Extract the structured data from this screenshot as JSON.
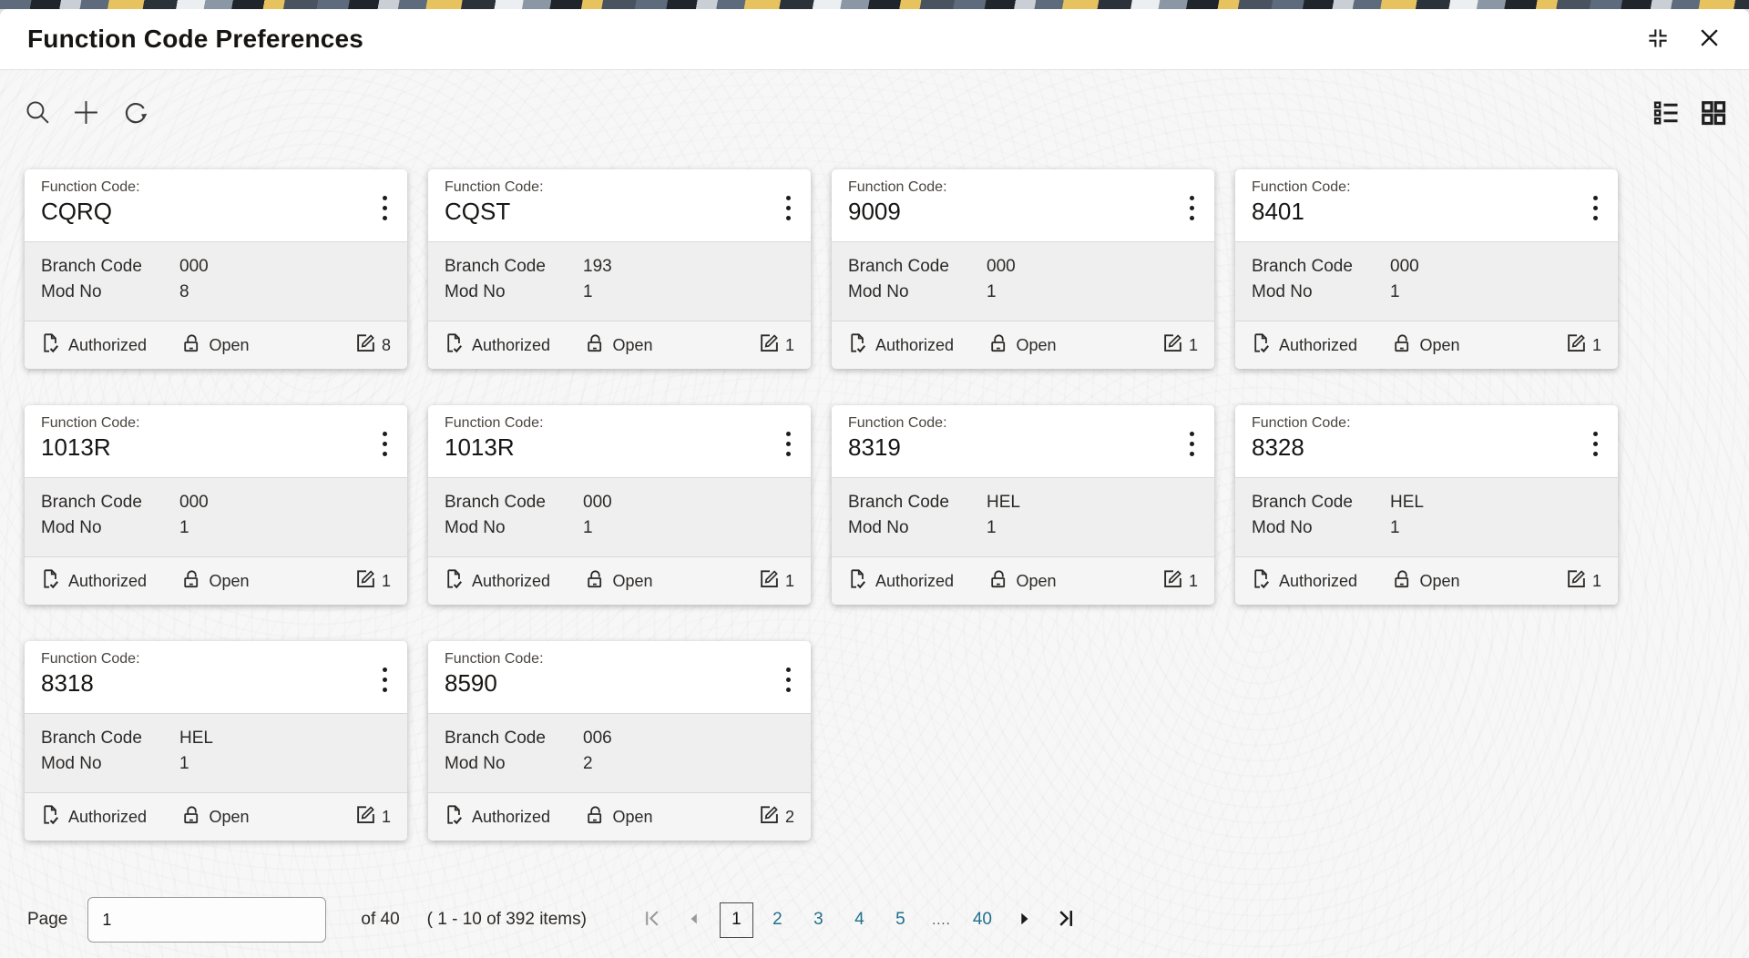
{
  "window": {
    "title": "Function Code Preferences"
  },
  "card_labels": {
    "function_code": "Function Code:",
    "branch_code": "Branch Code",
    "mod_no": "Mod No"
  },
  "cards": [
    {
      "function_code": "CQRQ",
      "branch_code": "000",
      "mod_no": "8",
      "authorization_status": "Authorized",
      "record_status": "Open",
      "edit_count": "8"
    },
    {
      "function_code": "CQST",
      "branch_code": "193",
      "mod_no": "1",
      "authorization_status": "Authorized",
      "record_status": "Open",
      "edit_count": "1"
    },
    {
      "function_code": "9009",
      "branch_code": "000",
      "mod_no": "1",
      "authorization_status": "Authorized",
      "record_status": "Open",
      "edit_count": "1"
    },
    {
      "function_code": "8401",
      "branch_code": "000",
      "mod_no": "1",
      "authorization_status": "Authorized",
      "record_status": "Open",
      "edit_count": "1"
    },
    {
      "function_code": "1013R",
      "branch_code": "000",
      "mod_no": "1",
      "authorization_status": "Authorized",
      "record_status": "Open",
      "edit_count": "1"
    },
    {
      "function_code": "1013R",
      "branch_code": "000",
      "mod_no": "1",
      "authorization_status": "Authorized",
      "record_status": "Open",
      "edit_count": "1"
    },
    {
      "function_code": "8319",
      "branch_code": "HEL",
      "mod_no": "1",
      "authorization_status": "Authorized",
      "record_status": "Open",
      "edit_count": "1"
    },
    {
      "function_code": "8328",
      "branch_code": "HEL",
      "mod_no": "1",
      "authorization_status": "Authorized",
      "record_status": "Open",
      "edit_count": "1"
    },
    {
      "function_code": "8318",
      "branch_code": "HEL",
      "mod_no": "1",
      "authorization_status": "Authorized",
      "record_status": "Open",
      "edit_count": "1"
    },
    {
      "function_code": "8590",
      "branch_code": "006",
      "mod_no": "2",
      "authorization_status": "Authorized",
      "record_status": "Open",
      "edit_count": "2"
    }
  ],
  "pagination": {
    "page_label": "Page",
    "page_input_value": "1",
    "of_label": "of 40",
    "items_summary": "( 1 - 10 of 392 items)",
    "pages": [
      {
        "label": "1",
        "type": "current"
      },
      {
        "label": "2",
        "type": "link"
      },
      {
        "label": "3",
        "type": "link"
      },
      {
        "label": "4",
        "type": "link"
      },
      {
        "label": "5",
        "type": "link"
      },
      {
        "label": "....",
        "type": "ellipsis"
      },
      {
        "label": "40",
        "type": "link"
      }
    ]
  },
  "colors": {
    "page_link_teal": "#21708c",
    "title_text": "#161513",
    "card_mid_bg": "#efeff0",
    "strip_yellow": "#e7c360"
  }
}
